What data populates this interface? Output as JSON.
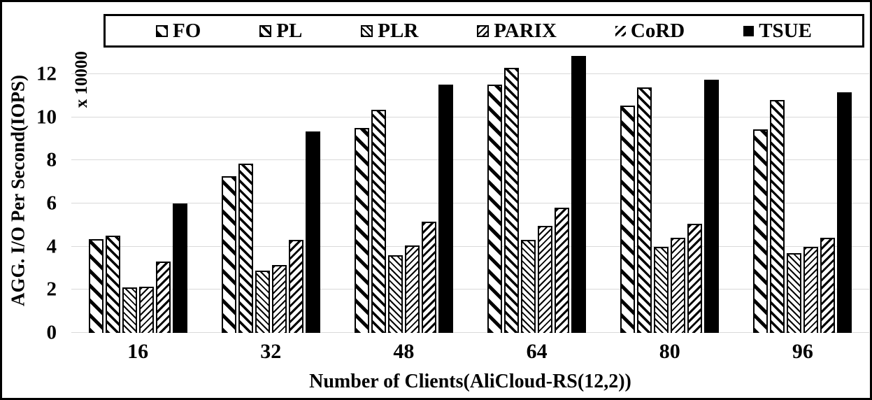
{
  "chart_data": {
    "type": "bar",
    "title": "",
    "xlabel": "Number of Clients(AliCloud-RS(12,2))",
    "ylabel": "AGG. I/O Per Second(IOPS)",
    "y_multiplier_label": "x 10000",
    "categories": [
      "16",
      "32",
      "48",
      "64",
      "80",
      "96"
    ],
    "series": [
      {
        "name": "FO",
        "pattern": "diagonal-backslash-wide",
        "swatch_border": true,
        "values": [
          4.35,
          7.25,
          9.5,
          11.5,
          10.55,
          9.45
        ]
      },
      {
        "name": "PL",
        "pattern": "diagonal-backslash-medium",
        "swatch_border": true,
        "values": [
          4.5,
          7.85,
          10.35,
          12.3,
          11.4,
          10.8
        ]
      },
      {
        "name": "PLR",
        "pattern": "diagonal-backslash-fine",
        "swatch_border": true,
        "values": [
          2.1,
          2.9,
          3.6,
          4.3,
          4.0,
          3.7
        ]
      },
      {
        "name": "PARIX",
        "pattern": "diagonal-slash-fine",
        "swatch_border": true,
        "values": [
          2.15,
          3.15,
          4.05,
          4.95,
          4.4,
          4.0
        ]
      },
      {
        "name": "CoRD",
        "pattern": "diagonal-slash-medium",
        "swatch_border": false,
        "values": [
          3.3,
          4.3,
          5.15,
          5.8,
          5.05,
          4.4
        ]
      },
      {
        "name": "TSUE",
        "pattern": "solid-black",
        "swatch_border": false,
        "values": [
          6.0,
          9.35,
          11.5,
          12.85,
          11.75,
          11.15
        ]
      }
    ],
    "yticks": [
      0,
      2,
      4,
      6,
      8,
      10,
      12
    ],
    "ylim": [
      0,
      13.2
    ],
    "grid": "horizontal",
    "legend_position": "top",
    "units": "IOPS"
  },
  "colors": {
    "bar_fill": "#000000",
    "background": "#ffffff",
    "gridline": "#d9d9d9",
    "frame": "#000000"
  }
}
